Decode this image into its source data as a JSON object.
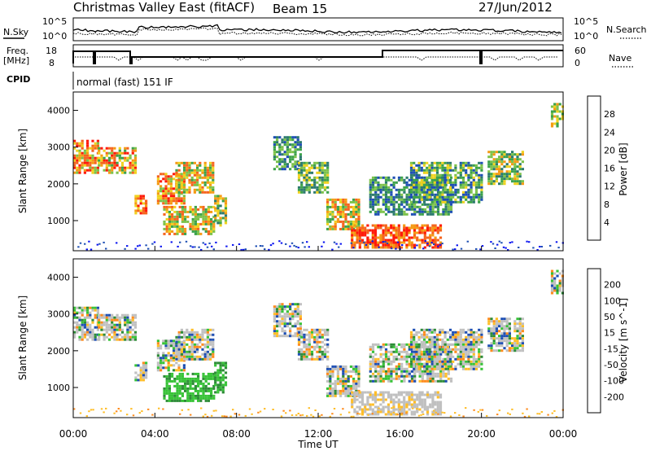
{
  "header": {
    "station": "Christmas Valley East (fitACF)",
    "beam": "Beam 15",
    "date": "27/Jun/2012"
  },
  "noise_panel": {
    "left_label": "N.Sky",
    "right_label": "N.Search",
    "ticks_top": "10^5",
    "ticks_bottom": "10^0"
  },
  "freq_panel": {
    "left_label_line1": "Freq.",
    "left_label_line2": "[MHz]",
    "left_tick_top": "18",
    "left_tick_bottom": "8",
    "right_tick_top": "60",
    "right_tick_bottom": "0",
    "right_label": "Nave"
  },
  "cpid": {
    "label": "CPID",
    "value": "normal (fast) 151 IF"
  },
  "colors": {
    "power_scale": [
      "#0a14f0",
      "#1e4fb4",
      "#2c7a6e",
      "#3ca24a",
      "#7dc24a",
      "#f0d21e",
      "#f59a14",
      "#f5641e",
      "#ff1a0a"
    ],
    "velocity_scale": [
      "#ff1a0a",
      "#ff5a14",
      "#ff8c1e",
      "#ffbe28",
      "#c0c0c0",
      "#c0c0c0",
      "#37c337",
      "#2d8c37",
      "#1e4fb4",
      "#0a14f0"
    ]
  },
  "chart_data": [
    {
      "type": "heatmap",
      "title": "Power",
      "xlabel": "Time UT",
      "ylabel": "Slant Range [km]",
      "x_ticks": [
        "00:00",
        "04:00",
        "08:00",
        "12:00",
        "16:00",
        "20:00",
        "00:00"
      ],
      "y_ticks": [
        "1000",
        "2000",
        "3000",
        "4000"
      ],
      "ylim": [
        180,
        4500
      ],
      "colorbar": {
        "label": "Power [dB]",
        "ticks": [
          "4",
          "8",
          "12",
          "16",
          "20",
          "24",
          "28"
        ],
        "range": [
          0,
          32
        ]
      }
    },
    {
      "type": "heatmap",
      "title": "Velocity",
      "xlabel": "Time UT",
      "ylabel": "Slant Range [km]",
      "x_ticks": [
        "00:00",
        "04:00",
        "08:00",
        "12:00",
        "16:00",
        "20:00",
        "00:00"
      ],
      "y_ticks": [
        "1000",
        "2000",
        "3000",
        "4000"
      ],
      "ylim": [
        180,
        4500
      ],
      "colorbar": {
        "label": "Velocity [m s^-1]",
        "ticks": [
          "200",
          "100",
          "50",
          "15",
          "-15",
          "-50",
          "-100",
          "-200"
        ]
      }
    }
  ]
}
